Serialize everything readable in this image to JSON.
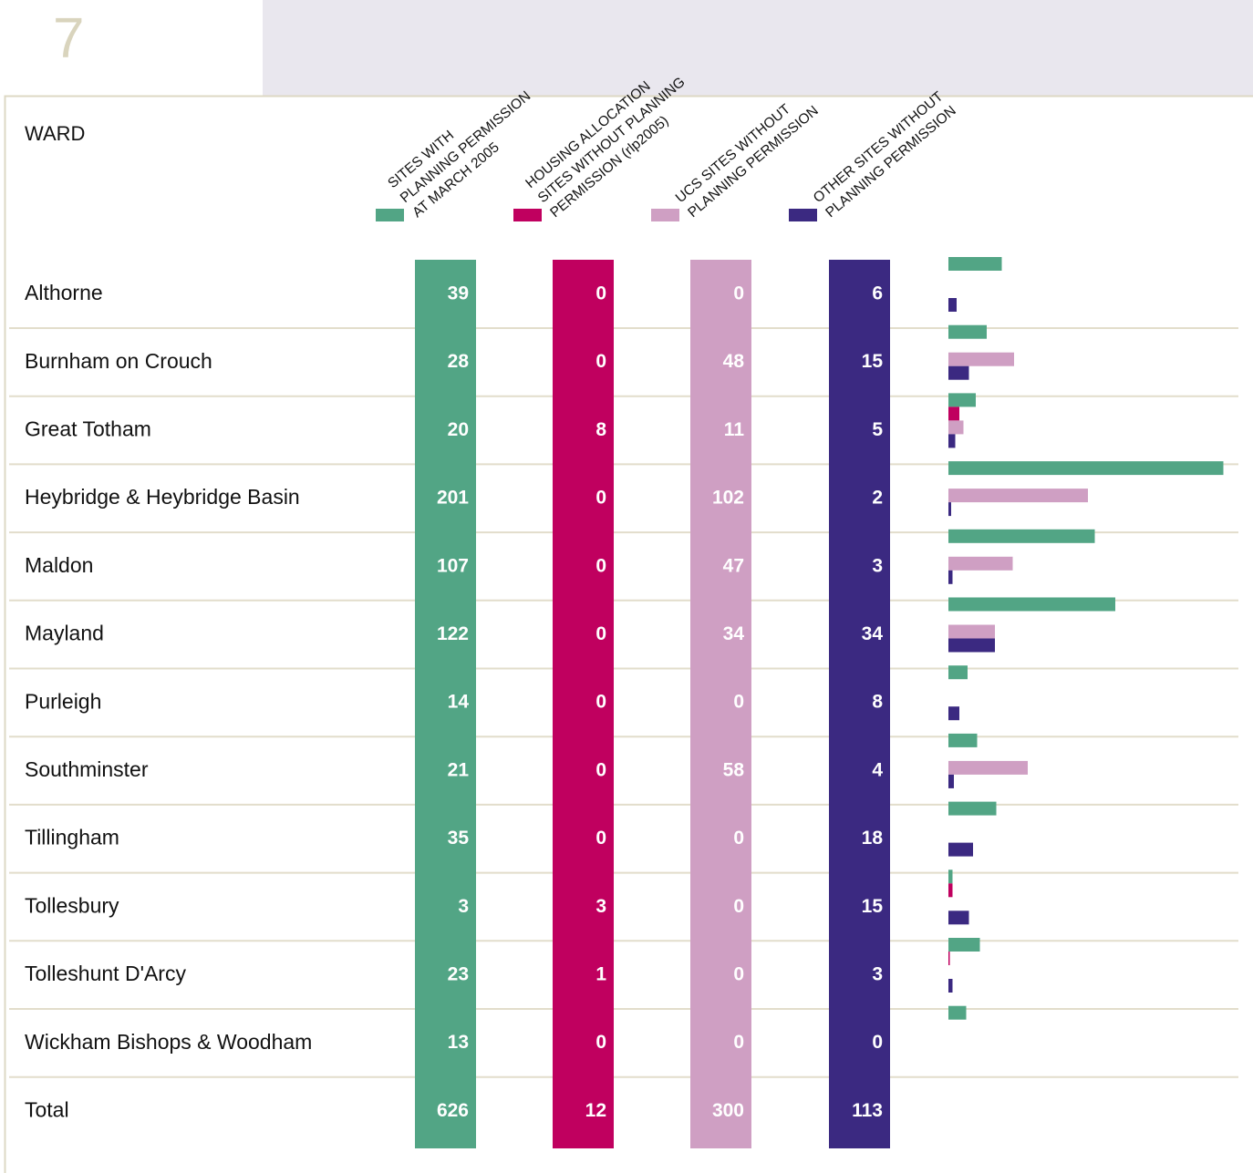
{
  "page_number": "7",
  "table": {
    "header": "WARD",
    "columns": [
      {
        "label_lines": [
          "SITES WITH",
          "PLANNING PERMISSION",
          "AT MARCH 2005"
        ],
        "color": "#52a585"
      },
      {
        "label_lines": [
          "HOUSING ALLOCATION",
          "SITES WITHOUT PLANNING",
          "PERMISSION (rlp2005)"
        ],
        "color": "#c0005f"
      },
      {
        "label_lines": [
          "UCS SITES WITHOUT",
          "PLANNING PERMISSION"
        ],
        "color": "#cf9fc3"
      },
      {
        "label_lines": [
          "OTHER SITES WITHOUT",
          "PLANNING PERMISSION"
        ],
        "color": "#3b2981"
      }
    ],
    "rows": [
      {
        "name": "Althorne",
        "values": [
          39,
          0,
          0,
          6
        ]
      },
      {
        "name": "Burnham on Crouch",
        "values": [
          28,
          0,
          48,
          15
        ]
      },
      {
        "name": "Great Totham",
        "values": [
          20,
          8,
          11,
          5
        ]
      },
      {
        "name": "Heybridge & Heybridge Basin",
        "values": [
          201,
          0,
          102,
          2
        ]
      },
      {
        "name": "Maldon",
        "values": [
          107,
          0,
          47,
          3
        ]
      },
      {
        "name": "Mayland",
        "values": [
          122,
          0,
          34,
          34
        ]
      },
      {
        "name": "Purleigh",
        "values": [
          14,
          0,
          0,
          8
        ]
      },
      {
        "name": "Southminster",
        "values": [
          21,
          0,
          58,
          4
        ]
      },
      {
        "name": "Tillingham",
        "values": [
          35,
          0,
          0,
          18
        ]
      },
      {
        "name": "Tollesbury",
        "values": [
          3,
          3,
          0,
          15
        ]
      },
      {
        "name": "Tolleshunt D'Arcy",
        "values": [
          23,
          1,
          0,
          3
        ]
      },
      {
        "name": "Wickham Bishops & Woodham",
        "values": [
          13,
          0,
          0,
          0
        ]
      }
    ],
    "total": {
      "name": "Total",
      "values": [
        626,
        12,
        300,
        113
      ]
    }
  }
}
